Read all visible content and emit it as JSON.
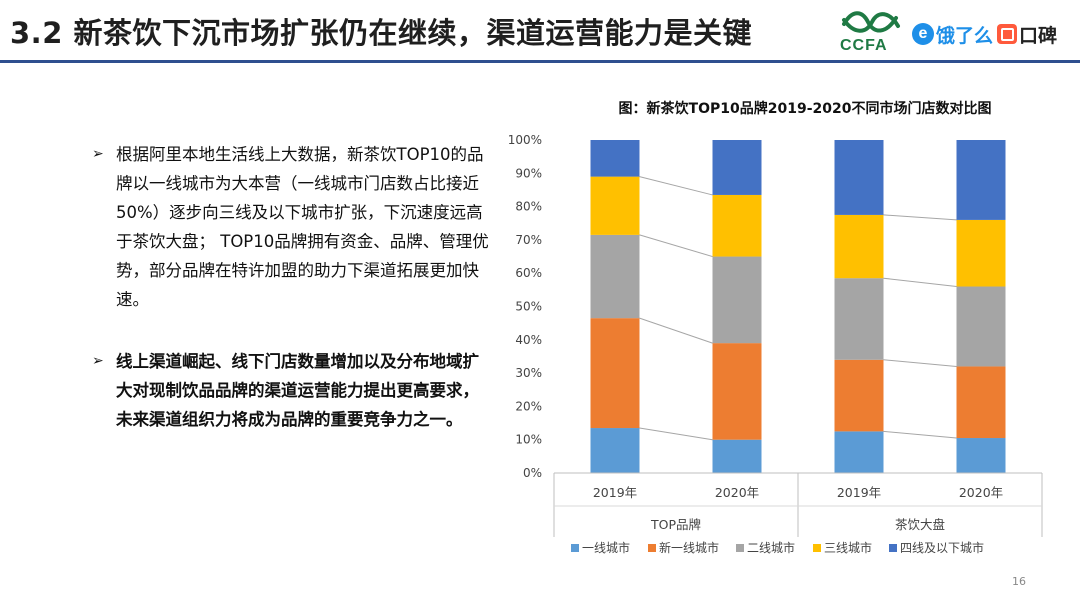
{
  "header": {
    "title": "3.2 新茶饮下沉市场扩张仍在继续，渠道运营能力是关键",
    "logo_ccfa": "CCFA",
    "logo_eleme": "饿了么",
    "logo_koubei": "口碑"
  },
  "bullets": [
    {
      "mark": "➢",
      "text": "根据阿里本地生活线上大数据，新茶饮TOP10的品牌以一线城市为大本营（一线城市门店数占比接近50%）逐步向三线及以下城市扩张，下沉速度远高于茶饮大盘； TOP10品牌拥有资金、品牌、管理优势，部分品牌在特许加盟的助力下渠道拓展更加快速。"
    },
    {
      "mark": "➢",
      "text": "线上渠道崛起、线下门店数量增加以及分布地域扩大对现制饮品品牌的渠道运营能力提出更高要求，未来渠道组织力将成为品牌的重要竞争力之一。"
    }
  ],
  "page_number": "16",
  "colors": {
    "series": [
      "#5b9bd5",
      "#ed7d31",
      "#a5a5a5",
      "#ffc000",
      "#4472c4"
    ],
    "header_line": "#2f4f8f"
  },
  "chart_data": {
    "type": "bar",
    "stacked": "percent",
    "title": "图：新茶饮TOP10品牌2019-2020不同市场门店数对比图",
    "categories": [
      "2019年",
      "2020年",
      "2019年",
      "2020年"
    ],
    "groups": [
      {
        "label": "TOP品牌",
        "categories": [
          0,
          1
        ]
      },
      {
        "label": "茶饮大盘",
        "categories": [
          2,
          3
        ]
      }
    ],
    "ylim": [
      0,
      100
    ],
    "yticks": [
      "0%",
      "10%",
      "20%",
      "30%",
      "40%",
      "50%",
      "60%",
      "70%",
      "80%",
      "90%",
      "100%"
    ],
    "series": [
      {
        "name": "一线城市",
        "values": [
          13.5,
          10,
          12.5,
          10.5
        ]
      },
      {
        "name": "新一线城市",
        "values": [
          33,
          29,
          21.5,
          21.5
        ]
      },
      {
        "name": "二线城市",
        "values": [
          25,
          26,
          24.5,
          24
        ]
      },
      {
        "name": "三线城市",
        "values": [
          17.5,
          18.5,
          19,
          20
        ]
      },
      {
        "name": "四线及以下城市",
        "values": [
          11,
          16.5,
          22.5,
          24
        ]
      }
    ],
    "legend_position": "bottom"
  }
}
